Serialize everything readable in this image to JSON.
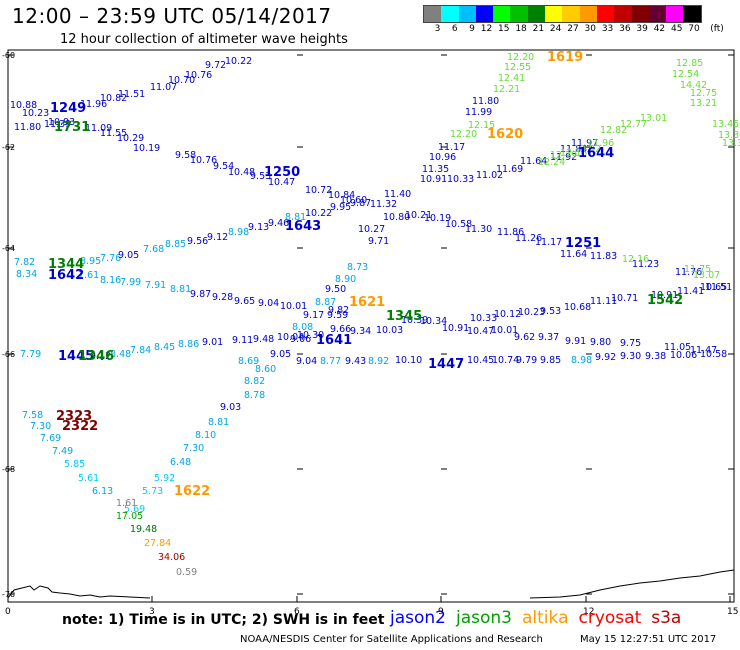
{
  "header": {
    "title": "12:00 – 23:59 UTC 05/14/2017",
    "subtitle": "12 hour collection of altimeter wave heights"
  },
  "colorbar": {
    "unit_label": "(ft)",
    "ticks": [
      "3",
      "6",
      "9",
      "12",
      "15",
      "18",
      "21",
      "24",
      "27",
      "30",
      "33",
      "36",
      "39",
      "42",
      "45",
      "70"
    ],
    "colors": [
      "#808080",
      "#00ffff",
      "#00bfff",
      "#0000ff",
      "#00ff00",
      "#00c000",
      "#008000",
      "#ffff00",
      "#ffcc00",
      "#ff9900",
      "#ff0000",
      "#c00000",
      "#800000",
      "#660033",
      "#ff00ff",
      "#000000"
    ]
  },
  "axes": {
    "x_ticks": [
      "0",
      "3",
      "6",
      "9",
      "12",
      "15"
    ],
    "y_ticks": [
      "-60",
      "-62",
      "-64",
      "-66",
      "-68",
      "-70"
    ]
  },
  "tracks": [
    {
      "id": "t1",
      "labels": [
        "10.88",
        "10.23",
        "11.80",
        "11.39",
        "10.93",
        "11.09",
        "11.55",
        "10.29",
        "10.19",
        "9.58",
        "10.76",
        "9.54",
        "10.48",
        "9.53",
        "10.47",
        "10.72",
        "10.84",
        "10.60",
        "9.95",
        "9.87",
        "10.27",
        "9.71",
        "8.73",
        "8.90",
        "9.50",
        "8.87",
        "9.17",
        "9.82",
        "8.08",
        "9.06",
        "9.05",
        "8.60",
        "8.82",
        "8.78",
        "9.03",
        "8.81",
        "8.10",
        "7.30",
        "6.48",
        "5.92",
        "5.73"
      ]
    },
    {
      "id": "t2",
      "labels": [
        "11.96",
        "10.82",
        "11.51",
        "11.07",
        "10.70",
        "10.76",
        "9.72",
        "10.22",
        "11.80",
        "11.99",
        "11.17",
        "10.96",
        "11.35",
        "10.91",
        "10.33",
        "11.02",
        "11.69",
        "11.64",
        "11.92",
        "11.97",
        "11.84"
      ]
    },
    {
      "id": "t3",
      "labels": [
        "7.82",
        "8.34",
        "7.61",
        "8.95",
        "7.76",
        "9.05",
        "7.68",
        "8.85",
        "9.56",
        "9.12",
        "8.98",
        "9.13",
        "9.46",
        "8.81",
        "10.22",
        "11.32",
        "11.40",
        "10.80",
        "10.21",
        "10.19",
        "10.58",
        "11.30",
        "11.86",
        "11.26",
        "11.17",
        "11.64",
        "11.83",
        "11.23",
        "11.76",
        "10.65"
      ]
    },
    {
      "id": "t4",
      "labels": [
        "8.16",
        "7.99",
        "7.91",
        "8.81",
        "9.87",
        "9.28",
        "9.65",
        "9.04",
        "10.01",
        "9.59",
        "9.66",
        "9.34",
        "10.03",
        "10.39",
        "10.33",
        "10.12",
        "10.23",
        "9.53",
        "10.68",
        "11.11",
        "10.71",
        "10.91",
        "11.41",
        "11.51"
      ]
    },
    {
      "id": "t5",
      "labels": [
        "7.79",
        "9.12",
        "8.48",
        "7.84",
        "8.45",
        "8.86",
        "9.01",
        "9.11",
        "9.48",
        "10.04",
        "10.30",
        "10.34",
        "10.91",
        "10.47",
        "10.01",
        "9.62",
        "9.37",
        "9.91",
        "9.80",
        "9.75",
        "11.05",
        "11.47"
      ]
    },
    {
      "id": "t6",
      "labels": [
        "9.04",
        "8.69",
        "8.77",
        "9.43",
        "8.92",
        "10.10",
        "10.45",
        "10.74",
        "9.79",
        "9.85",
        "8.98",
        "9.92",
        "9.30",
        "9.38",
        "10.06",
        "10.58"
      ]
    },
    {
      "id": "t7",
      "labels": [
        "7.58",
        "7.30",
        "7.69",
        "7.49",
        "5.85",
        "5.61",
        "6.13",
        "1.61",
        "5.69",
        "17.05",
        "19.48",
        "27.84",
        "34.06",
        "0.59"
      ]
    }
  ],
  "green_labels": [
    "12.20",
    "12.55",
    "12.41",
    "12.21",
    "12.15",
    "12.20",
    "12.85",
    "12.54",
    "14.42",
    "12.75",
    "13.21",
    "13.01",
    "12.77",
    "12.82",
    "13.45",
    "13.30",
    "13.38",
    "12.24",
    "12.19",
    "12.16",
    "12.02",
    "11.96",
    "13.07",
    "12.16",
    "11.75"
  ],
  "time_markers": [
    {
      "text": "1249",
      "color": "#0000cc"
    },
    {
      "text": "1731",
      "color": "#008000"
    },
    {
      "text": "1250",
      "color": "#0000cc"
    },
    {
      "text": "1643",
      "color": "#0000cc"
    },
    {
      "text": "1619",
      "color": "#ff9900"
    },
    {
      "text": "1620",
      "color": "#ff9900"
    },
    {
      "text": "1644",
      "color": "#0000cc"
    },
    {
      "text": "1344",
      "color": "#008000"
    },
    {
      "text": "1642",
      "color": "#0000cc"
    },
    {
      "text": "1621",
      "color": "#ff9900"
    },
    {
      "text": "1345",
      "color": "#008000"
    },
    {
      "text": "1251",
      "color": "#0000cc"
    },
    {
      "text": "1542",
      "color": "#008000"
    },
    {
      "text": "1641",
      "color": "#0000cc"
    },
    {
      "text": "1445",
      "color": "#0000cc"
    },
    {
      "text": "1346",
      "color": "#008000"
    },
    {
      "text": "1447",
      "color": "#0000cc"
    },
    {
      "text": "2323",
      "color": "#800000"
    },
    {
      "text": "2322",
      "color": "#800000"
    },
    {
      "text": "1622",
      "color": "#ff9900"
    }
  ],
  "footer": {
    "note": "note: 1) Time is in UTC; 2) SWH is in feet",
    "satellites": [
      {
        "name": "jason2",
        "color": "#0000ff"
      },
      {
        "name": "jason3",
        "color": "#00a000"
      },
      {
        "name": "altika",
        "color": "#ff9900"
      },
      {
        "name": "cryosat",
        "color": "#ff0000"
      },
      {
        "name": "s3a",
        "color": "#c00000"
      }
    ],
    "credit": "NOAA/NESDIS Center for Satellite Applications and Research",
    "timestamp": "May 15 12:27:51 UTC 2017"
  }
}
